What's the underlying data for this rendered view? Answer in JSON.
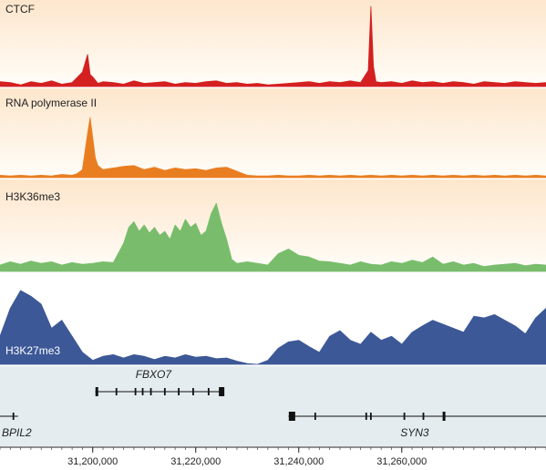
{
  "chart_data": {
    "type": "area",
    "xlim": [
      31182000,
      31288000
    ],
    "x_ticks": [
      31200000,
      31220000,
      31240000,
      31260000
    ],
    "x_tick_labels": [
      "31,200,000",
      "31,220,000",
      "31,240,000",
      "31,260,000"
    ],
    "x_minor_step": 2000,
    "colors": {
      "panel_bg_top": "#fde6cc",
      "panel_bg_bottom": "#fffdf8",
      "CTCF": "#d42020",
      "RNA polymerase II": "#e97e21",
      "H3K36me3": "#79bd6c",
      "H3K27me3": "#3c5897",
      "gene_bg": "#e4ecf0",
      "gene_line": "#111111"
    },
    "series": [
      {
        "name": "CTCF",
        "label": "CTCF",
        "x": [
          31182000,
          31184000,
          31186000,
          31188000,
          31190000,
          31192000,
          31194000,
          31196000,
          31198000,
          31199000,
          31199500,
          31200000,
          31201000,
          31202000,
          31204000,
          31206000,
          31208000,
          31210000,
          31212000,
          31214000,
          31216000,
          31218000,
          31220000,
          31222000,
          31224000,
          31226000,
          31228000,
          31230000,
          31232000,
          31234000,
          31236000,
          31238000,
          31240000,
          31242000,
          31244000,
          31246000,
          31248000,
          31250000,
          31252000,
          31253500,
          31254000,
          31254500,
          31255000,
          31256000,
          31258000,
          31260000,
          31262000,
          31264000,
          31266000,
          31268000,
          31270000,
          31272000,
          31274000,
          31276000,
          31278000,
          31280000,
          31282000,
          31284000,
          31286000,
          31288000
        ],
        "values": [
          0.06,
          0.05,
          0.02,
          0.06,
          0.04,
          0.07,
          0.03,
          0.05,
          0.18,
          0.4,
          0.15,
          0.12,
          0.04,
          0.06,
          0.05,
          0.03,
          0.07,
          0.04,
          0.05,
          0.06,
          0.03,
          0.05,
          0.04,
          0.06,
          0.07,
          0.04,
          0.05,
          0.03,
          0.04,
          0.02,
          0.03,
          0.04,
          0.05,
          0.06,
          0.04,
          0.06,
          0.05,
          0.07,
          0.05,
          0.2,
          1.0,
          0.25,
          0.06,
          0.05,
          0.06,
          0.04,
          0.07,
          0.05,
          0.06,
          0.04,
          0.06,
          0.05,
          0.03,
          0.06,
          0.05,
          0.04,
          0.06,
          0.05,
          0.04,
          0.05
        ]
      },
      {
        "name": "RNA polymerase II",
        "label": "RNA polymerase II",
        "x": [
          31182000,
          31184000,
          31186000,
          31188000,
          31190000,
          31192000,
          31194000,
          31196000,
          31197000,
          31198000,
          31199000,
          31199500,
          31200000,
          31200500,
          31201000,
          31202000,
          31204000,
          31206000,
          31208000,
          31210000,
          31212000,
          31214000,
          31216000,
          31218000,
          31220000,
          31222000,
          31224000,
          31226000,
          31228000,
          31230000,
          31232000,
          31234000,
          31236000,
          31238000,
          31240000,
          31242000,
          31244000,
          31246000,
          31248000,
          31250000,
          31252000,
          31254000,
          31256000,
          31258000,
          31260000,
          31262000,
          31264000,
          31266000,
          31268000,
          31270000,
          31272000,
          31274000,
          31276000,
          31278000,
          31280000,
          31282000,
          31284000,
          31286000,
          31288000
        ],
        "values": [
          0.03,
          0.02,
          0.03,
          0.02,
          0.03,
          0.02,
          0.04,
          0.03,
          0.05,
          0.1,
          0.55,
          0.75,
          0.5,
          0.25,
          0.15,
          0.1,
          0.12,
          0.14,
          0.15,
          0.1,
          0.13,
          0.09,
          0.12,
          0.1,
          0.11,
          0.09,
          0.12,
          0.13,
          0.08,
          0.03,
          0.02,
          0.02,
          0.03,
          0.02,
          0.02,
          0.03,
          0.02,
          0.03,
          0.02,
          0.03,
          0.02,
          0.03,
          0.02,
          0.03,
          0.02,
          0.03,
          0.02,
          0.03,
          0.02,
          0.03,
          0.02,
          0.03,
          0.02,
          0.03,
          0.02,
          0.03,
          0.02,
          0.03,
          0.02
        ]
      },
      {
        "name": "H3K36me3",
        "label": "H3K36me3",
        "x": [
          31182000,
          31184000,
          31186000,
          31188000,
          31190000,
          31192000,
          31194000,
          31196000,
          31198000,
          31200000,
          31202000,
          31204000,
          31206000,
          31207000,
          31208000,
          31209000,
          31210000,
          31211000,
          31212000,
          31213000,
          31214000,
          31215000,
          31216000,
          31217000,
          31218000,
          31219000,
          31220000,
          31221000,
          31222000,
          31223000,
          31224000,
          31225000,
          31226000,
          31227000,
          31228000,
          31230000,
          31232000,
          31234000,
          31236000,
          31238000,
          31240000,
          31242000,
          31244000,
          31246000,
          31248000,
          31250000,
          31252000,
          31254000,
          31256000,
          31258000,
          31260000,
          31262000,
          31264000,
          31266000,
          31268000,
          31270000,
          31272000,
          31274000,
          31276000,
          31278000,
          31280000,
          31282000,
          31284000,
          31286000,
          31288000
        ],
        "values": [
          0.08,
          0.12,
          0.09,
          0.13,
          0.1,
          0.12,
          0.08,
          0.11,
          0.09,
          0.1,
          0.12,
          0.11,
          0.35,
          0.55,
          0.62,
          0.5,
          0.58,
          0.48,
          0.55,
          0.45,
          0.5,
          0.4,
          0.58,
          0.5,
          0.65,
          0.55,
          0.6,
          0.45,
          0.5,
          0.72,
          0.85,
          0.6,
          0.4,
          0.15,
          0.1,
          0.12,
          0.1,
          0.08,
          0.22,
          0.28,
          0.2,
          0.18,
          0.13,
          0.12,
          0.1,
          0.08,
          0.12,
          0.09,
          0.08,
          0.12,
          0.1,
          0.14,
          0.11,
          0.18,
          0.09,
          0.12,
          0.08,
          0.1,
          0.06,
          0.08,
          0.09,
          0.1,
          0.07,
          0.09,
          0.08
        ]
      },
      {
        "name": "H3K27me3",
        "label": "H3K27me3",
        "x": [
          31182000,
          31184000,
          31186000,
          31188000,
          31190000,
          31192000,
          31194000,
          31196000,
          31198000,
          31200000,
          31202000,
          31204000,
          31206000,
          31208000,
          31210000,
          31212000,
          31214000,
          31216000,
          31218000,
          31220000,
          31222000,
          31224000,
          31226000,
          31228000,
          31230000,
          31232000,
          31234000,
          31236000,
          31238000,
          31240000,
          31242000,
          31244000,
          31246000,
          31248000,
          31250000,
          31252000,
          31254000,
          31256000,
          31258000,
          31260000,
          31262000,
          31264000,
          31266000,
          31268000,
          31270000,
          31272000,
          31274000,
          31276000,
          31278000,
          31280000,
          31282000,
          31284000,
          31286000,
          31288000
        ],
        "values": [
          0.35,
          0.7,
          0.92,
          0.85,
          0.75,
          0.45,
          0.55,
          0.35,
          0.15,
          0.05,
          0.1,
          0.12,
          0.08,
          0.12,
          0.1,
          0.06,
          0.1,
          0.08,
          0.12,
          0.09,
          0.1,
          0.07,
          0.08,
          0.04,
          0.01,
          0.0,
          0.05,
          0.2,
          0.28,
          0.3,
          0.22,
          0.15,
          0.35,
          0.42,
          0.3,
          0.25,
          0.4,
          0.3,
          0.35,
          0.25,
          0.4,
          0.48,
          0.55,
          0.5,
          0.45,
          0.4,
          0.6,
          0.58,
          0.62,
          0.55,
          0.48,
          0.38,
          0.58,
          0.7
        ]
      }
    ],
    "genes": [
      {
        "name": "FBXO7",
        "start": 31200500,
        "end": 31225200,
        "strand": "+",
        "exons": [
          31200800,
          31204600,
          31208300,
          31209700,
          31211300,
          31214000,
          31216700,
          31219500,
          31222500,
          31225000
        ]
      },
      {
        "name": "SYN3",
        "start": 31238000,
        "end": 31288000,
        "strand": "-",
        "exons": [
          31238600,
          31243200,
          31253100,
          31254000,
          31260500,
          31264200,
          31268200
        ]
      },
      {
        "name": "BPIL2",
        "start": 31182000,
        "end": 31185500,
        "strand": "-",
        "exons": [
          31184600
        ]
      }
    ]
  }
}
